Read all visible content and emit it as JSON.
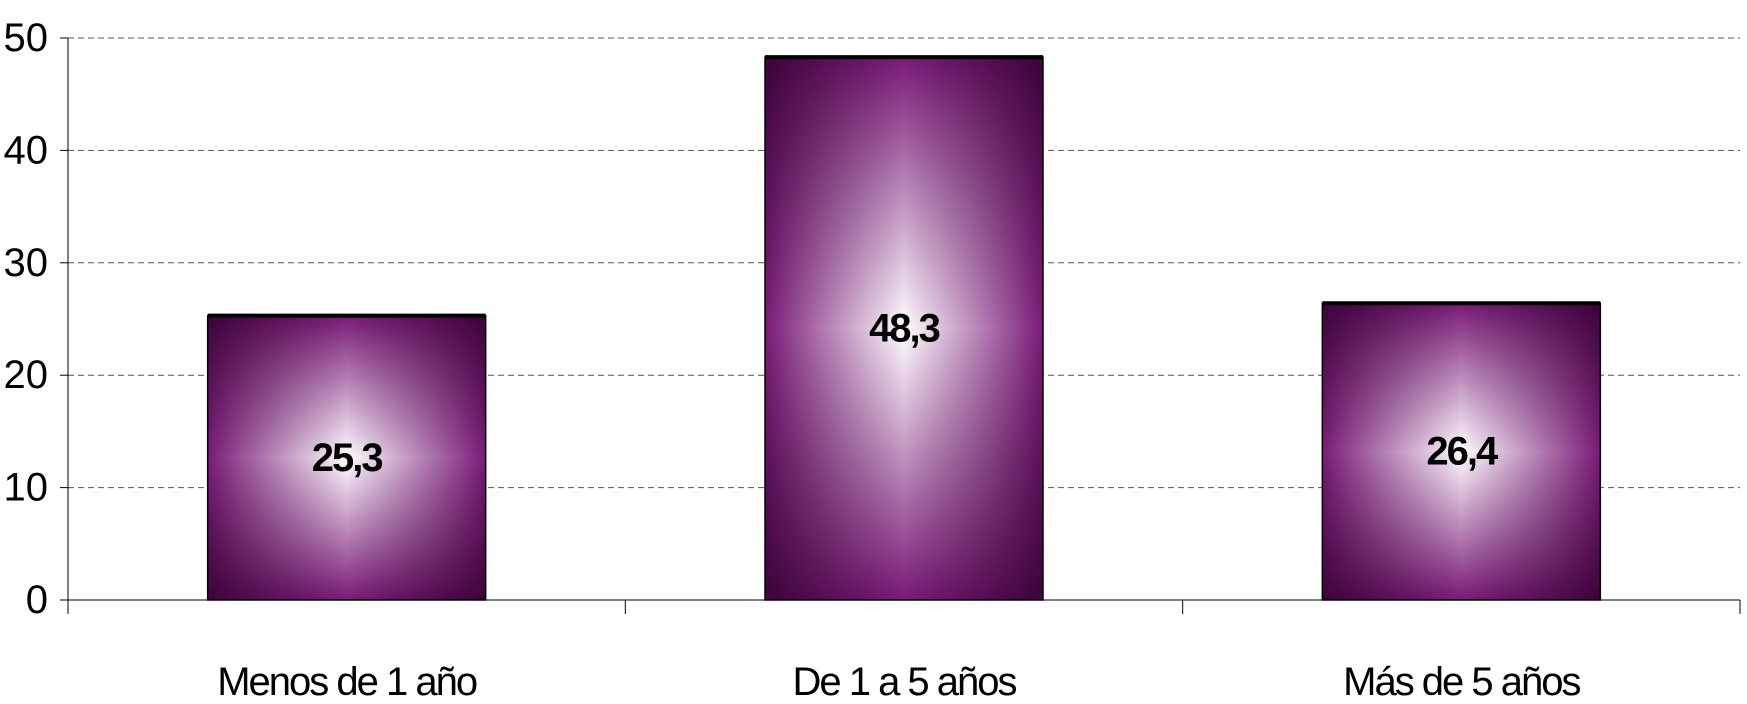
{
  "chart_data": {
    "type": "bar",
    "categories": [
      "Menos de 1 año",
      "De 1 a 5 años",
      "Más de 5 años"
    ],
    "values": [
      25.3,
      48.3,
      26.4
    ],
    "data_labels": [
      "25,3",
      "48,3",
      "26,4"
    ],
    "title": "",
    "xlabel": "",
    "ylabel": "",
    "ylim": [
      0,
      50
    ],
    "yticks": [
      0,
      10,
      20,
      30,
      40,
      50
    ],
    "grid": "dashed horizontal",
    "legend": "none",
    "colors": {
      "bar_edge": "#7a1a78",
      "bar_center": "#ffffff",
      "bar_top": "#000000"
    }
  }
}
